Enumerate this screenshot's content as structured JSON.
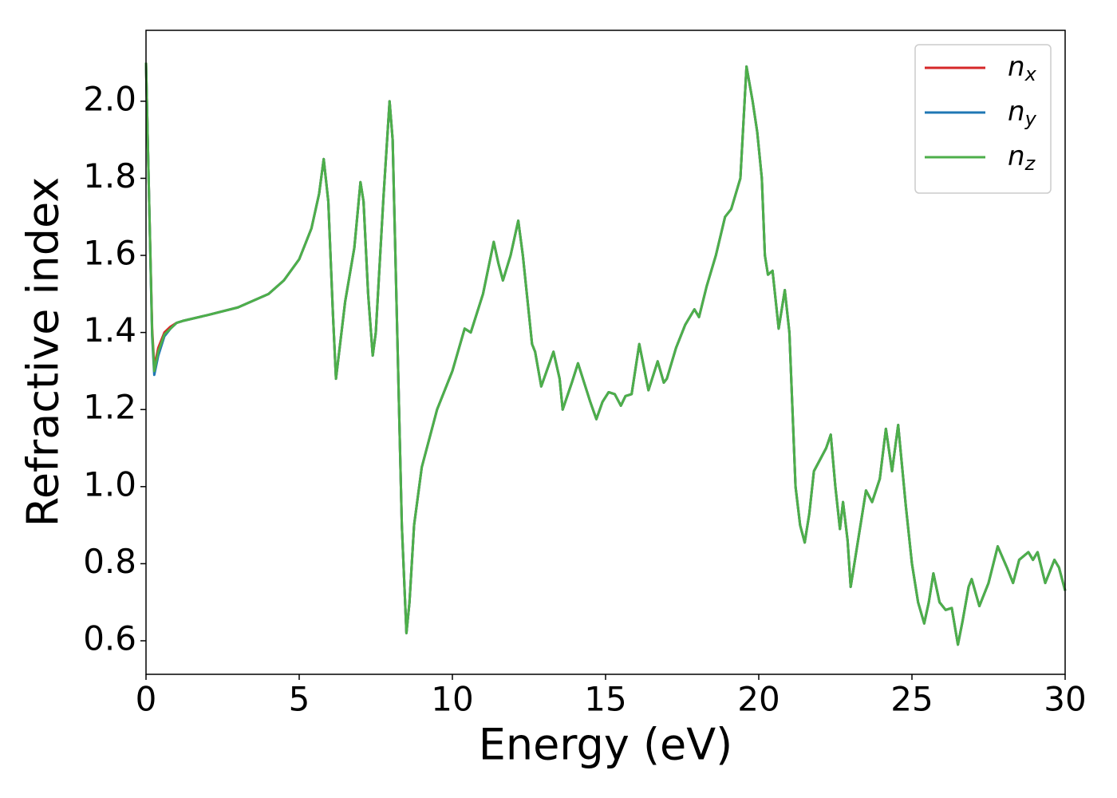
{
  "chart_data": {
    "type": "line",
    "xlabel": "Energy (eV)",
    "ylabel": "Refractive index",
    "x": [
      0,
      0.1,
      0.2,
      0.27,
      0.4,
      0.6,
      0.8,
      1.0,
      1.2,
      2,
      3,
      4,
      4.5,
      5,
      5.4,
      5.65,
      5.8,
      5.95,
      6.1,
      6.2,
      6.35,
      6.5,
      6.8,
      7.0,
      7.1,
      7.25,
      7.4,
      7.5,
      7.75,
      7.95,
      8.05,
      8.2,
      8.35,
      8.5,
      8.6,
      8.75,
      9.0,
      9.5,
      10.0,
      10.4,
      10.6,
      11.0,
      11.35,
      11.5,
      11.65,
      11.9,
      12.15,
      12.3,
      12.6,
      12.7,
      12.9,
      13.3,
      13.5,
      13.6,
      13.9,
      14.1,
      14.3,
      14.5,
      14.7,
      14.9,
      15.1,
      15.3,
      15.5,
      15.65,
      15.85,
      16.1,
      16.2,
      16.4,
      16.7,
      16.9,
      17.0,
      17.3,
      17.6,
      17.9,
      18.05,
      18.3,
      18.6,
      18.9,
      19.1,
      19.4,
      19.6,
      19.8,
      19.95,
      20.1,
      20.2,
      20.3,
      20.45,
      20.65,
      20.85,
      21.0,
      21.2,
      21.35,
      21.5,
      21.65,
      21.8,
      22.0,
      22.2,
      22.35,
      22.5,
      22.65,
      22.75,
      22.9,
      23.0,
      23.2,
      23.5,
      23.7,
      23.95,
      24.15,
      24.35,
      24.55,
      24.8,
      25.0,
      25.2,
      25.4,
      25.55,
      25.7,
      25.9,
      26.1,
      26.3,
      26.5,
      26.65,
      26.85,
      26.95,
      27.2,
      27.5,
      27.8,
      28.1,
      28.3,
      28.5,
      28.8,
      28.95,
      29.1,
      29.35,
      29.65,
      29.8,
      30.0
    ],
    "series": [
      {
        "name": "nx",
        "color": "#d62728",
        "values": [
          2.1,
          1.75,
          1.41,
          1.31,
          1.36,
          1.4,
          1.415,
          1.425,
          1.43,
          1.445,
          1.465,
          1.5,
          1.535,
          1.59,
          1.67,
          1.76,
          1.85,
          1.74,
          1.45,
          1.28,
          1.38,
          1.48,
          1.62,
          1.79,
          1.74,
          1.5,
          1.34,
          1.4,
          1.75,
          2.0,
          1.9,
          1.4,
          0.9,
          0.62,
          0.7,
          0.9,
          1.05,
          1.2,
          1.3,
          1.41,
          1.4,
          1.5,
          1.635,
          1.58,
          1.535,
          1.6,
          1.69,
          1.6,
          1.37,
          1.35,
          1.26,
          1.35,
          1.28,
          1.2,
          1.27,
          1.32,
          1.27,
          1.22,
          1.175,
          1.22,
          1.245,
          1.24,
          1.21,
          1.235,
          1.24,
          1.37,
          1.33,
          1.25,
          1.325,
          1.27,
          1.28,
          1.36,
          1.42,
          1.46,
          1.44,
          1.52,
          1.6,
          1.7,
          1.72,
          1.8,
          2.09,
          2.0,
          1.92,
          1.8,
          1.6,
          1.55,
          1.56,
          1.41,
          1.51,
          1.4,
          1.0,
          0.9,
          0.855,
          0.93,
          1.04,
          1.07,
          1.1,
          1.135,
          1.0,
          0.89,
          0.96,
          0.86,
          0.74,
          0.84,
          0.99,
          0.96,
          1.02,
          1.15,
          1.04,
          1.16,
          0.95,
          0.8,
          0.7,
          0.645,
          0.7,
          0.775,
          0.7,
          0.68,
          0.685,
          0.59,
          0.65,
          0.74,
          0.76,
          0.69,
          0.75,
          0.845,
          0.79,
          0.75,
          0.81,
          0.83,
          0.81,
          0.83,
          0.75,
          0.81,
          0.79,
          0.73
        ]
      },
      {
        "name": "ny",
        "color": "#1f77b4",
        "values": [
          2.1,
          1.75,
          1.39,
          1.29,
          1.34,
          1.39,
          1.41,
          1.425,
          1.43,
          1.445,
          1.465,
          1.5,
          1.535,
          1.59,
          1.67,
          1.76,
          1.85,
          1.74,
          1.45,
          1.28,
          1.38,
          1.48,
          1.62,
          1.79,
          1.74,
          1.5,
          1.34,
          1.4,
          1.75,
          2.0,
          1.9,
          1.4,
          0.9,
          0.62,
          0.7,
          0.9,
          1.05,
          1.2,
          1.3,
          1.41,
          1.4,
          1.5,
          1.635,
          1.58,
          1.535,
          1.6,
          1.69,
          1.6,
          1.37,
          1.35,
          1.26,
          1.35,
          1.28,
          1.2,
          1.27,
          1.32,
          1.27,
          1.22,
          1.175,
          1.22,
          1.245,
          1.24,
          1.21,
          1.235,
          1.24,
          1.37,
          1.33,
          1.25,
          1.325,
          1.27,
          1.28,
          1.36,
          1.42,
          1.46,
          1.44,
          1.52,
          1.6,
          1.7,
          1.72,
          1.8,
          2.09,
          2.0,
          1.92,
          1.8,
          1.6,
          1.55,
          1.56,
          1.41,
          1.51,
          1.4,
          1.0,
          0.9,
          0.855,
          0.93,
          1.04,
          1.07,
          1.1,
          1.135,
          1.0,
          0.89,
          0.96,
          0.86,
          0.74,
          0.84,
          0.99,
          0.96,
          1.02,
          1.15,
          1.04,
          1.16,
          0.95,
          0.8,
          0.7,
          0.645,
          0.7,
          0.775,
          0.7,
          0.68,
          0.685,
          0.59,
          0.65,
          0.74,
          0.76,
          0.69,
          0.75,
          0.845,
          0.79,
          0.75,
          0.81,
          0.83,
          0.81,
          0.83,
          0.75,
          0.81,
          0.79,
          0.73
        ]
      },
      {
        "name": "nz",
        "color": "#4daf4a",
        "values": [
          2.1,
          1.75,
          1.4,
          1.3,
          1.35,
          1.395,
          1.41,
          1.425,
          1.43,
          1.445,
          1.465,
          1.5,
          1.535,
          1.59,
          1.67,
          1.76,
          1.85,
          1.74,
          1.45,
          1.28,
          1.38,
          1.48,
          1.62,
          1.79,
          1.74,
          1.5,
          1.34,
          1.4,
          1.75,
          2.0,
          1.9,
          1.4,
          0.9,
          0.62,
          0.7,
          0.9,
          1.05,
          1.2,
          1.3,
          1.41,
          1.4,
          1.5,
          1.635,
          1.58,
          1.535,
          1.6,
          1.69,
          1.6,
          1.37,
          1.35,
          1.26,
          1.35,
          1.28,
          1.2,
          1.27,
          1.32,
          1.27,
          1.22,
          1.175,
          1.22,
          1.245,
          1.24,
          1.21,
          1.235,
          1.24,
          1.37,
          1.33,
          1.25,
          1.325,
          1.27,
          1.28,
          1.36,
          1.42,
          1.46,
          1.44,
          1.52,
          1.6,
          1.7,
          1.72,
          1.8,
          2.09,
          2.0,
          1.92,
          1.8,
          1.6,
          1.55,
          1.56,
          1.41,
          1.51,
          1.4,
          1.0,
          0.9,
          0.855,
          0.93,
          1.04,
          1.07,
          1.1,
          1.135,
          1.0,
          0.89,
          0.96,
          0.86,
          0.74,
          0.84,
          0.99,
          0.96,
          1.02,
          1.15,
          1.04,
          1.16,
          0.95,
          0.8,
          0.7,
          0.645,
          0.7,
          0.775,
          0.7,
          0.68,
          0.685,
          0.59,
          0.65,
          0.74,
          0.76,
          0.69,
          0.75,
          0.845,
          0.79,
          0.75,
          0.81,
          0.83,
          0.81,
          0.83,
          0.75,
          0.81,
          0.79,
          0.73
        ]
      }
    ],
    "xlim": [
      0,
      30
    ],
    "xticks": [
      0,
      5,
      10,
      15,
      20,
      25,
      30
    ],
    "ylim": [
      0.513,
      2.184
    ],
    "yticks": [
      0.6,
      0.8,
      {
        "value": 1.0,
        "label": "1.0"
      },
      1.2,
      1.4,
      1.6,
      1.8,
      {
        "value": 2.0,
        "label": "2.0"
      }
    ],
    "legend": "upper right",
    "grid": false
  }
}
